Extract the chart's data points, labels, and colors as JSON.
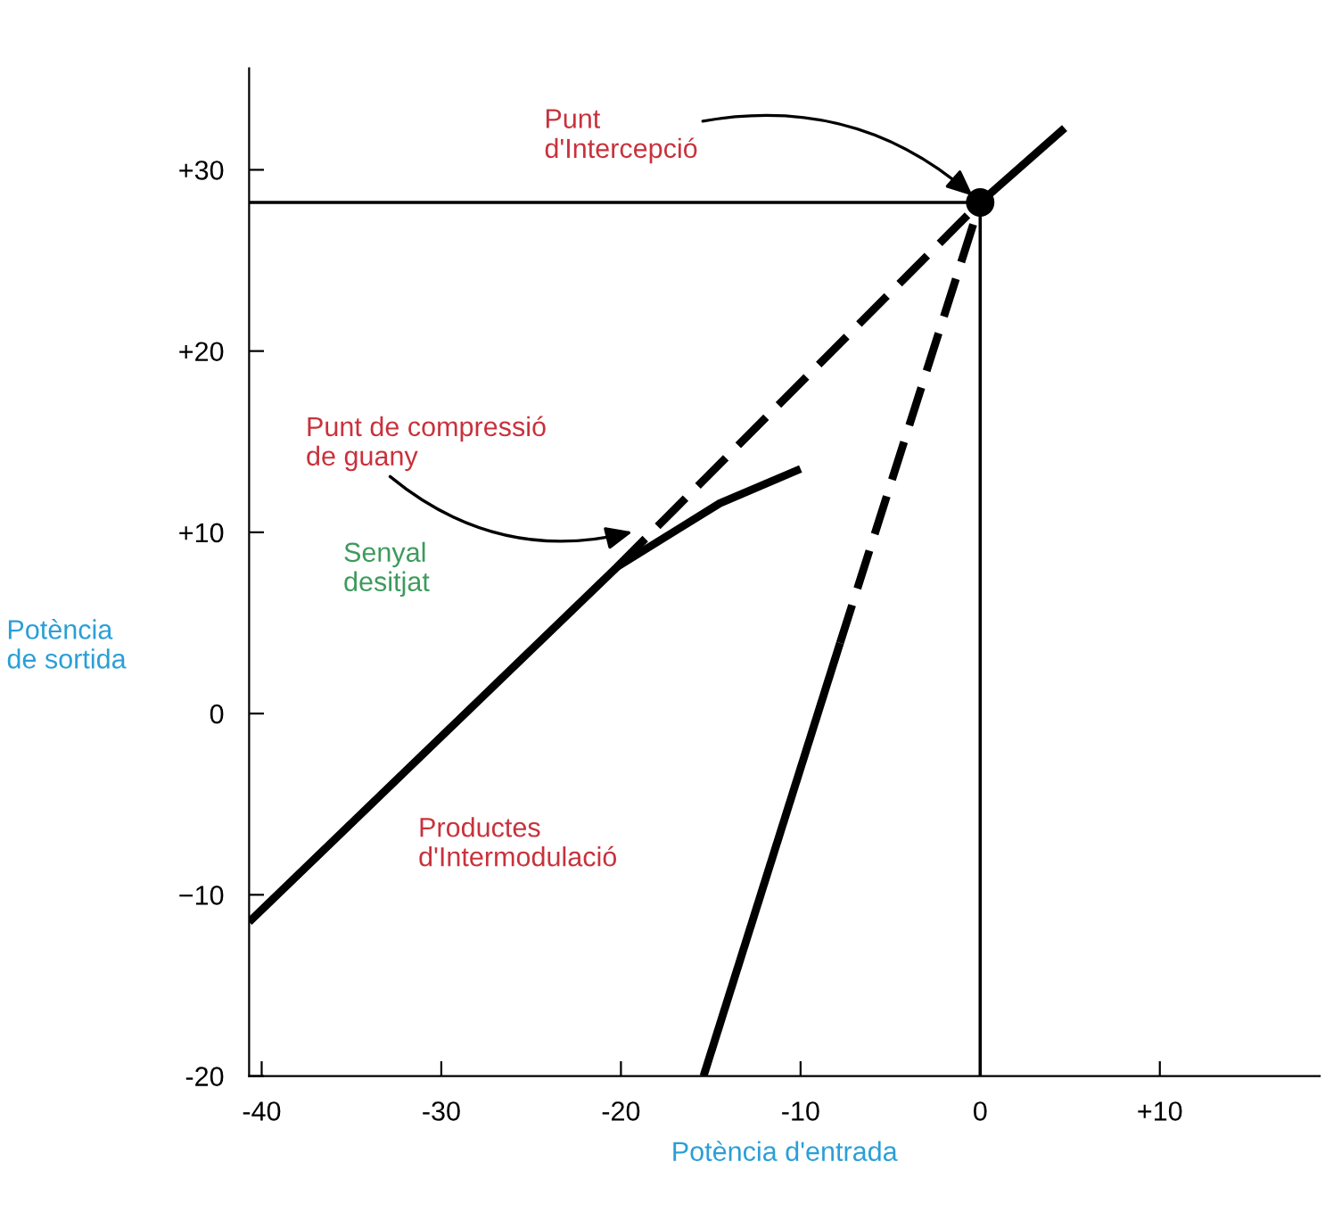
{
  "chart_data": {
    "type": "line",
    "xlabel": "Potència d'entrada",
    "ylabel": "Potència\nde sortida",
    "xlim": [
      -40.7,
      18.9
    ],
    "ylim": [
      -20,
      35.6
    ],
    "xticks": [
      -40,
      -30,
      -20,
      -10,
      0,
      {
        "value": 10,
        "label": "+10"
      }
    ],
    "yticks": [
      {
        "value": 30,
        "label": "+30"
      },
      {
        "value": 20,
        "label": "+20"
      },
      {
        "value": 10,
        "label": "+10"
      },
      0,
      {
        "value": -10,
        "label": "−10"
      },
      -20
    ],
    "grid": false,
    "series": [
      {
        "color": "#000000",
        "x": [
          -40.7,
          -20.2,
          -14.5,
          -10
        ],
        "values": [
          -11.5,
          8.1,
          11.6,
          13.5
        ],
        "line_style": "solid"
      },
      {
        "color": "#000000",
        "x": [
          -20.2,
          0
        ],
        "values": [
          8.1,
          28.2
        ],
        "line_style": "dashed"
      },
      {
        "color": "#000000",
        "x": [
          0,
          4.7
        ],
        "values": [
          28.2,
          32.3
        ],
        "line_style": "solid"
      },
      {
        "color": "#000000",
        "x": [
          -15.4,
          -7.8
        ],
        "values": [
          -20,
          3.9
        ],
        "line_style": "solid"
      },
      {
        "color": "#000000",
        "x": [
          -7.8,
          0
        ],
        "values": [
          3.9,
          28.2
        ],
        "line_style": "dashed"
      },
      {
        "type": "scatter",
        "color": "#000000",
        "x": [
          0
        ],
        "values": [
          28.2
        ],
        "marker": "circle"
      }
    ],
    "ref_lines": [
      {
        "axis": "y",
        "value": 28.2,
        "color": "#000000"
      },
      {
        "axis": "x",
        "value": 0,
        "color": "#000000"
      }
    ],
    "annotations": [
      {
        "text": "Punt\nd'Intercepció",
        "x": 0,
        "y": 28.2
      },
      "Punt de compressió\nde guany",
      "Senyal\ndesitjat",
      "Productes\nd'Intermodulació"
    ]
  }
}
